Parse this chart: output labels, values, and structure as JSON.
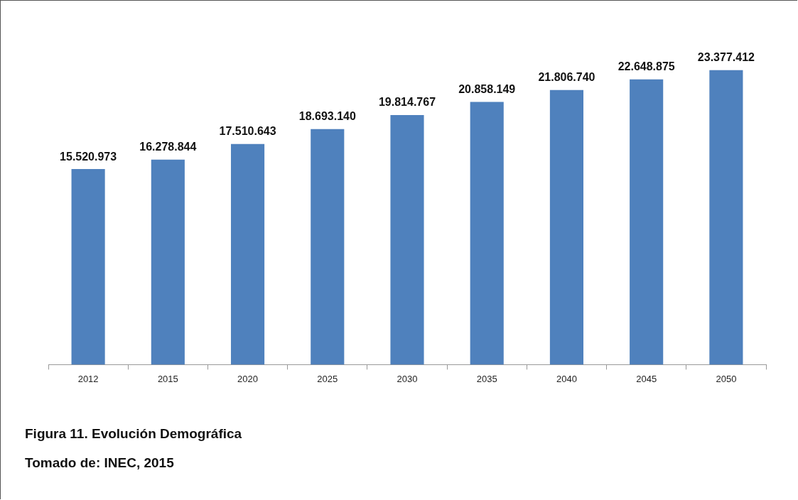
{
  "chart_data": {
    "type": "bar",
    "categories": [
      "2012",
      "2015",
      "2020",
      "2025",
      "2030",
      "2035",
      "2040",
      "2045",
      "2050"
    ],
    "values": [
      15520973,
      16278844,
      17510643,
      18693140,
      19814767,
      20858149,
      21806740,
      22648875,
      23377412
    ],
    "value_labels": [
      "15.520.973",
      "16.278.844",
      "17.510.643",
      "18.693.140",
      "19.814.767",
      "20.858.149",
      "21.806.740",
      "22.648.875",
      "23.377.412"
    ],
    "color": "#4f81bd",
    "grid": false,
    "legend": false,
    "annotations": [
      "Figura 11. Evolución Demográfica",
      "Tomado de: INEC, 2015"
    ]
  }
}
